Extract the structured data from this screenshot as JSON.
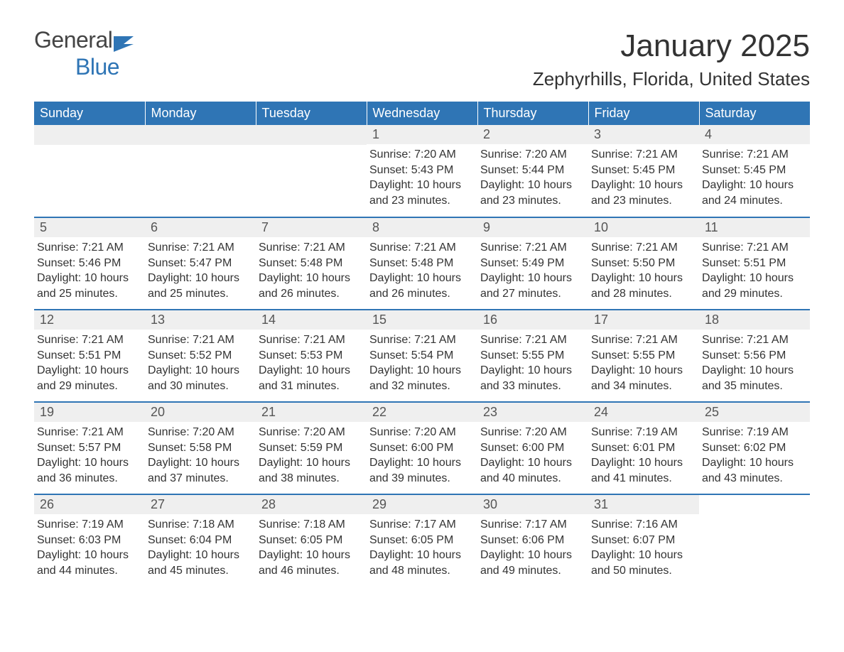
{
  "logo": {
    "general": "General",
    "blue": "Blue",
    "icon_color": "#2f75b5"
  },
  "month_title": "January 2025",
  "location": "Zephyrhills, Florida, United States",
  "styling": {
    "header_bg": "#2f75b5",
    "header_text": "#ffffff",
    "daynum_bg": "#efefef",
    "daynum_text": "#555555",
    "body_text": "#333333",
    "row_border": "#2f75b5",
    "page_bg": "#ffffff",
    "title_fontsize": 44,
    "location_fontsize": 26,
    "header_fontsize": 18,
    "daynum_fontsize": 18,
    "content_fontsize": 16,
    "columns": 7,
    "rows": 5
  },
  "day_headers": [
    "Sunday",
    "Monday",
    "Tuesday",
    "Wednesday",
    "Thursday",
    "Friday",
    "Saturday"
  ],
  "weeks": [
    [
      null,
      null,
      null,
      {
        "n": "1",
        "sunrise": "Sunrise: 7:20 AM",
        "sunset": "Sunset: 5:43 PM",
        "daylight": "Daylight: 10 hours and 23 minutes."
      },
      {
        "n": "2",
        "sunrise": "Sunrise: 7:20 AM",
        "sunset": "Sunset: 5:44 PM",
        "daylight": "Daylight: 10 hours and 23 minutes."
      },
      {
        "n": "3",
        "sunrise": "Sunrise: 7:21 AM",
        "sunset": "Sunset: 5:45 PM",
        "daylight": "Daylight: 10 hours and 23 minutes."
      },
      {
        "n": "4",
        "sunrise": "Sunrise: 7:21 AM",
        "sunset": "Sunset: 5:45 PM",
        "daylight": "Daylight: 10 hours and 24 minutes."
      }
    ],
    [
      {
        "n": "5",
        "sunrise": "Sunrise: 7:21 AM",
        "sunset": "Sunset: 5:46 PM",
        "daylight": "Daylight: 10 hours and 25 minutes."
      },
      {
        "n": "6",
        "sunrise": "Sunrise: 7:21 AM",
        "sunset": "Sunset: 5:47 PM",
        "daylight": "Daylight: 10 hours and 25 minutes."
      },
      {
        "n": "7",
        "sunrise": "Sunrise: 7:21 AM",
        "sunset": "Sunset: 5:48 PM",
        "daylight": "Daylight: 10 hours and 26 minutes."
      },
      {
        "n": "8",
        "sunrise": "Sunrise: 7:21 AM",
        "sunset": "Sunset: 5:48 PM",
        "daylight": "Daylight: 10 hours and 26 minutes."
      },
      {
        "n": "9",
        "sunrise": "Sunrise: 7:21 AM",
        "sunset": "Sunset: 5:49 PM",
        "daylight": "Daylight: 10 hours and 27 minutes."
      },
      {
        "n": "10",
        "sunrise": "Sunrise: 7:21 AM",
        "sunset": "Sunset: 5:50 PM",
        "daylight": "Daylight: 10 hours and 28 minutes."
      },
      {
        "n": "11",
        "sunrise": "Sunrise: 7:21 AM",
        "sunset": "Sunset: 5:51 PM",
        "daylight": "Daylight: 10 hours and 29 minutes."
      }
    ],
    [
      {
        "n": "12",
        "sunrise": "Sunrise: 7:21 AM",
        "sunset": "Sunset: 5:51 PM",
        "daylight": "Daylight: 10 hours and 29 minutes."
      },
      {
        "n": "13",
        "sunrise": "Sunrise: 7:21 AM",
        "sunset": "Sunset: 5:52 PM",
        "daylight": "Daylight: 10 hours and 30 minutes."
      },
      {
        "n": "14",
        "sunrise": "Sunrise: 7:21 AM",
        "sunset": "Sunset: 5:53 PM",
        "daylight": "Daylight: 10 hours and 31 minutes."
      },
      {
        "n": "15",
        "sunrise": "Sunrise: 7:21 AM",
        "sunset": "Sunset: 5:54 PM",
        "daylight": "Daylight: 10 hours and 32 minutes."
      },
      {
        "n": "16",
        "sunrise": "Sunrise: 7:21 AM",
        "sunset": "Sunset: 5:55 PM",
        "daylight": "Daylight: 10 hours and 33 minutes."
      },
      {
        "n": "17",
        "sunrise": "Sunrise: 7:21 AM",
        "sunset": "Sunset: 5:55 PM",
        "daylight": "Daylight: 10 hours and 34 minutes."
      },
      {
        "n": "18",
        "sunrise": "Sunrise: 7:21 AM",
        "sunset": "Sunset: 5:56 PM",
        "daylight": "Daylight: 10 hours and 35 minutes."
      }
    ],
    [
      {
        "n": "19",
        "sunrise": "Sunrise: 7:21 AM",
        "sunset": "Sunset: 5:57 PM",
        "daylight": "Daylight: 10 hours and 36 minutes."
      },
      {
        "n": "20",
        "sunrise": "Sunrise: 7:20 AM",
        "sunset": "Sunset: 5:58 PM",
        "daylight": "Daylight: 10 hours and 37 minutes."
      },
      {
        "n": "21",
        "sunrise": "Sunrise: 7:20 AM",
        "sunset": "Sunset: 5:59 PM",
        "daylight": "Daylight: 10 hours and 38 minutes."
      },
      {
        "n": "22",
        "sunrise": "Sunrise: 7:20 AM",
        "sunset": "Sunset: 6:00 PM",
        "daylight": "Daylight: 10 hours and 39 minutes."
      },
      {
        "n": "23",
        "sunrise": "Sunrise: 7:20 AM",
        "sunset": "Sunset: 6:00 PM",
        "daylight": "Daylight: 10 hours and 40 minutes."
      },
      {
        "n": "24",
        "sunrise": "Sunrise: 7:19 AM",
        "sunset": "Sunset: 6:01 PM",
        "daylight": "Daylight: 10 hours and 41 minutes."
      },
      {
        "n": "25",
        "sunrise": "Sunrise: 7:19 AM",
        "sunset": "Sunset: 6:02 PM",
        "daylight": "Daylight: 10 hours and 43 minutes."
      }
    ],
    [
      {
        "n": "26",
        "sunrise": "Sunrise: 7:19 AM",
        "sunset": "Sunset: 6:03 PM",
        "daylight": "Daylight: 10 hours and 44 minutes."
      },
      {
        "n": "27",
        "sunrise": "Sunrise: 7:18 AM",
        "sunset": "Sunset: 6:04 PM",
        "daylight": "Daylight: 10 hours and 45 minutes."
      },
      {
        "n": "28",
        "sunrise": "Sunrise: 7:18 AM",
        "sunset": "Sunset: 6:05 PM",
        "daylight": "Daylight: 10 hours and 46 minutes."
      },
      {
        "n": "29",
        "sunrise": "Sunrise: 7:17 AM",
        "sunset": "Sunset: 6:05 PM",
        "daylight": "Daylight: 10 hours and 48 minutes."
      },
      {
        "n": "30",
        "sunrise": "Sunrise: 7:17 AM",
        "sunset": "Sunset: 6:06 PM",
        "daylight": "Daylight: 10 hours and 49 minutes."
      },
      {
        "n": "31",
        "sunrise": "Sunrise: 7:16 AM",
        "sunset": "Sunset: 6:07 PM",
        "daylight": "Daylight: 10 hours and 50 minutes."
      },
      null
    ]
  ]
}
